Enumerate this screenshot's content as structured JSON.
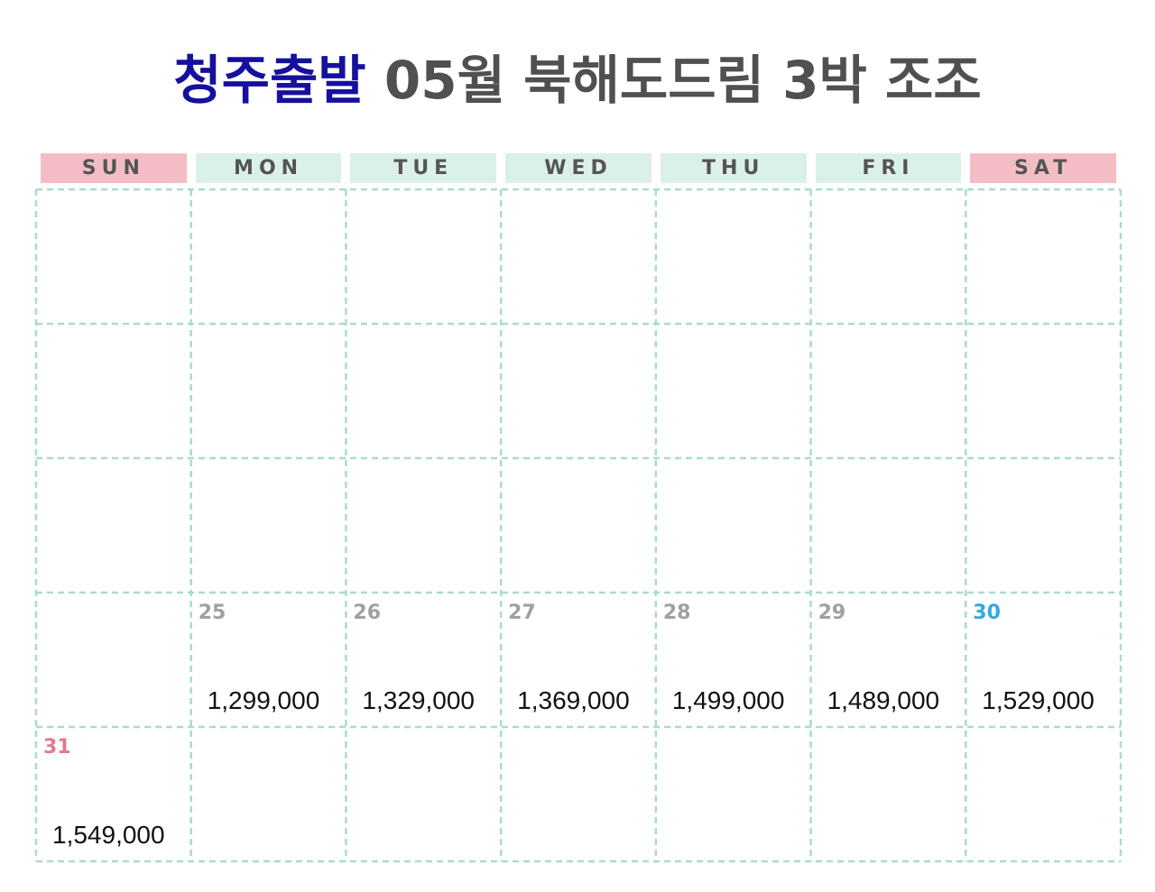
{
  "title": {
    "highlight": "청주출발",
    "rest": "05월 북해도드림 3박 조조"
  },
  "weekdays": [
    "SUN",
    "MON",
    "TUE",
    "WED",
    "THU",
    "FRI",
    "SAT"
  ],
  "entries": [
    {
      "day": 25,
      "price": "1,299,000"
    },
    {
      "day": 26,
      "price": "1,329,000"
    },
    {
      "day": 27,
      "price": "1,369,000"
    },
    {
      "day": 28,
      "price": "1,499,000"
    },
    {
      "day": 29,
      "price": "1,489,000"
    },
    {
      "day": 30,
      "price": "1,529,000"
    },
    {
      "day": 31,
      "price": "1,549,000"
    }
  ]
}
